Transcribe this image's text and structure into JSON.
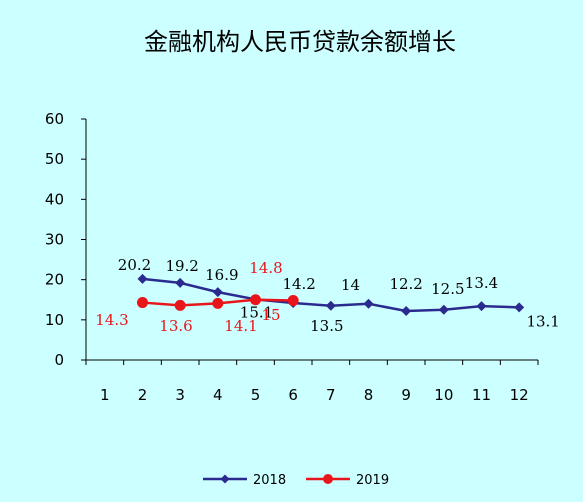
{
  "chart_data": {
    "type": "line",
    "title": "金融机构人民币贷款余额增长",
    "xlabel": "",
    "ylabel": "",
    "categories": [
      "1",
      "2",
      "3",
      "4",
      "5",
      "6",
      "7",
      "8",
      "9",
      "10",
      "11",
      "12"
    ],
    "ylim": [
      0,
      60
    ],
    "yticks": [
      "0",
      "10",
      "20",
      "30",
      "40",
      "50",
      "60"
    ],
    "grid": false,
    "legend_position": "bottom",
    "series": [
      {
        "name": "2018",
        "color": "#2b2b8f",
        "marker": "diamond",
        "values": [
          null,
          20.2,
          19.2,
          16.9,
          15.1,
          14.2,
          13.5,
          14,
          12.2,
          12.5,
          13.4,
          13.1
        ],
        "labels": [
          null,
          "20.2",
          "19.2",
          "16.9",
          "15.1",
          "14.2",
          "13.5",
          "14",
          "12.2",
          "12.5",
          "13.4",
          "13.1"
        ]
      },
      {
        "name": "2019",
        "color": "#e8161b",
        "marker": "circle",
        "values": [
          null,
          14.3,
          13.6,
          14.1,
          15,
          14.8,
          null,
          null,
          null,
          null,
          null,
          null
        ],
        "labels": [
          "14.3",
          "13.6",
          "14.1",
          "15",
          "14.8"
        ]
      }
    ]
  }
}
